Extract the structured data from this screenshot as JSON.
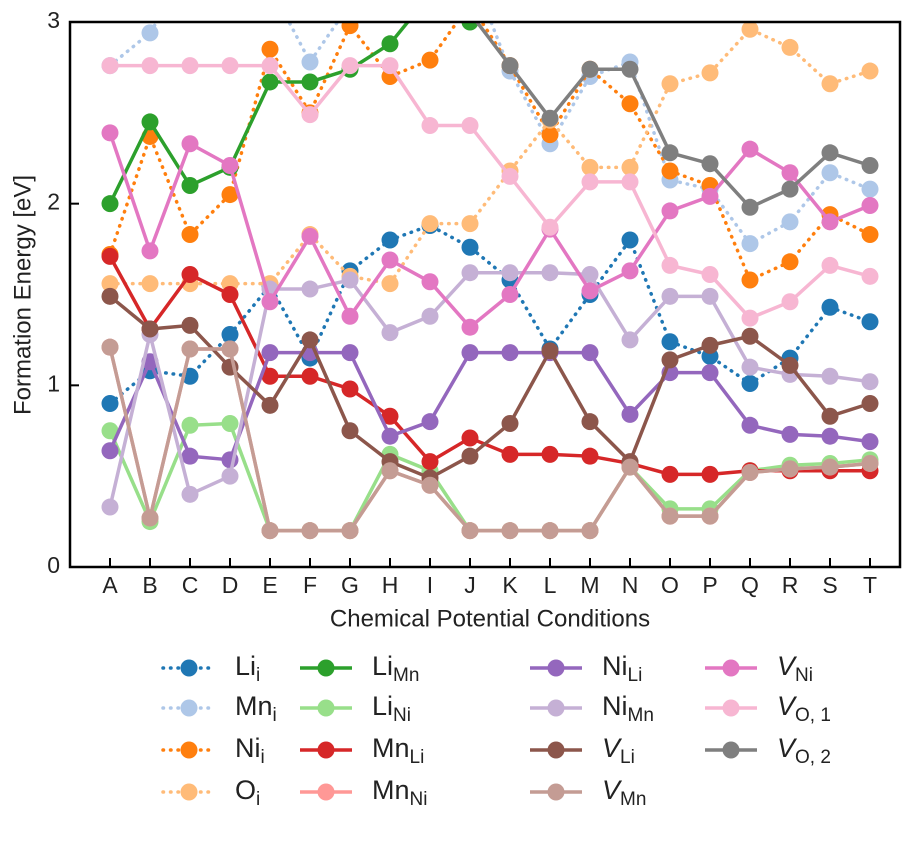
{
  "chart_data": {
    "type": "line",
    "x_label": "Chemical Potential Conditions",
    "y_label": "Formation Energy [eV]",
    "categories": [
      "A",
      "B",
      "C",
      "D",
      "E",
      "F",
      "G",
      "H",
      "I",
      "J",
      "K",
      "L",
      "M",
      "N",
      "O",
      "P",
      "Q",
      "R",
      "S",
      "T"
    ],
    "ylim": [
      0,
      3
    ],
    "yticks": [
      0,
      1,
      2,
      3
    ],
    "series": [
      {
        "name": "Li",
        "subscript": "i",
        "italic": false,
        "style": "dotted",
        "color": "#1f77b4",
        "values": [
          0.9,
          1.08,
          1.05,
          1.28,
          1.55,
          1.15,
          1.63,
          1.8,
          1.88,
          1.76,
          1.58,
          1.2,
          1.5,
          1.8,
          1.24,
          1.16,
          1.01,
          1.15,
          1.43,
          1.35
        ]
      },
      {
        "name": "Mn",
        "subscript": "i",
        "italic": false,
        "style": "dotted",
        "color": "#aec7e8",
        "values": [
          2.76,
          2.94,
          3.3,
          3.3,
          3.2,
          2.78,
          3.1,
          3.3,
          3.3,
          3.3,
          2.73,
          2.33,
          2.7,
          2.78,
          2.13,
          2.08,
          1.78,
          1.9,
          2.17,
          2.08
        ]
      },
      {
        "name": "Ni",
        "subscript": "i",
        "italic": false,
        "style": "dotted",
        "color": "#ff7f0e",
        "values": [
          1.72,
          2.37,
          1.83,
          2.05,
          2.85,
          2.5,
          2.98,
          2.7,
          2.79,
          3.1,
          2.76,
          2.38,
          2.74,
          2.55,
          2.18,
          2.1,
          1.58,
          1.68,
          1.94,
          1.83
        ]
      },
      {
        "name": "O",
        "subscript": "i",
        "italic": false,
        "style": "dotted",
        "color": "#ffbb78",
        "values": [
          1.56,
          1.56,
          1.56,
          1.56,
          1.56,
          1.83,
          1.6,
          1.56,
          1.89,
          1.89,
          2.18,
          2.46,
          2.2,
          2.2,
          2.66,
          2.72,
          2.96,
          2.86,
          2.66,
          2.73
        ]
      },
      {
        "name": "Li",
        "subscript": "Mn",
        "italic": false,
        "style": "solid",
        "color": "#2ca02c",
        "values": [
          2.0,
          2.45,
          2.1,
          2.2,
          2.67,
          2.67,
          2.74,
          2.88,
          3.15,
          3.0,
          3.3,
          3.3,
          3.3,
          3.3,
          3.3,
          3.3,
          3.3,
          3.3,
          3.3,
          3.3
        ]
      },
      {
        "name": "Li",
        "subscript": "Ni",
        "italic": false,
        "style": "solid",
        "color": "#98df8a",
        "values": [
          0.75,
          0.25,
          0.78,
          0.79,
          0.2,
          0.2,
          0.2,
          0.62,
          0.53,
          0.2,
          0.2,
          0.2,
          0.2,
          0.55,
          0.32,
          0.32,
          0.53,
          0.56,
          0.57,
          0.59
        ]
      },
      {
        "name": "Mn",
        "subscript": "Li",
        "italic": false,
        "style": "solid",
        "color": "#d62728",
        "values": [
          1.71,
          1.31,
          1.61,
          1.5,
          1.05,
          1.05,
          0.98,
          0.83,
          0.58,
          0.71,
          0.62,
          0.62,
          0.61,
          0.57,
          0.51,
          0.51,
          0.53,
          0.53,
          0.53,
          0.53
        ]
      },
      {
        "name": "Mn",
        "subscript": "Ni",
        "italic": false,
        "style": "solid",
        "color": "#ff9896",
        "values": [
          1.21,
          0.27,
          1.2,
          1.2,
          0.2,
          0.2,
          0.2,
          0.53,
          0.45,
          0.2,
          0.2,
          0.2,
          0.2,
          0.55,
          0.28,
          0.28,
          0.52,
          0.54,
          0.55,
          0.57
        ]
      },
      {
        "name": "Ni",
        "subscript": "Li",
        "italic": false,
        "style": "solid",
        "color": "#9467bd",
        "values": [
          0.64,
          1.13,
          0.61,
          0.59,
          1.18,
          1.18,
          1.18,
          0.72,
          0.8,
          1.18,
          1.18,
          1.18,
          1.18,
          0.84,
          1.07,
          1.07,
          0.78,
          0.73,
          0.72,
          0.69
        ]
      },
      {
        "name": "Ni",
        "subscript": "Mn",
        "italic": false,
        "style": "solid",
        "color": "#c5b0d5",
        "values": [
          0.33,
          1.28,
          0.4,
          0.5,
          1.53,
          1.53,
          1.58,
          1.29,
          1.38,
          1.62,
          1.62,
          1.62,
          1.61,
          1.25,
          1.49,
          1.49,
          1.1,
          1.06,
          1.05,
          1.02
        ]
      },
      {
        "name": "V",
        "subscript": "Li",
        "italic": true,
        "style": "solid",
        "color": "#8c564b",
        "values": [
          1.49,
          1.31,
          1.33,
          1.1,
          0.89,
          1.25,
          0.75,
          0.58,
          0.49,
          0.61,
          0.79,
          1.19,
          0.8,
          0.58,
          1.14,
          1.22,
          1.27,
          1.11,
          0.83,
          0.9
        ]
      },
      {
        "name": "V",
        "subscript": "Mn",
        "italic": true,
        "style": "solid",
        "color": "#c49c94",
        "values": [
          1.21,
          0.27,
          1.2,
          1.2,
          0.2,
          0.2,
          0.2,
          0.53,
          0.45,
          0.2,
          0.2,
          0.2,
          0.2,
          0.55,
          0.28,
          0.28,
          0.52,
          0.54,
          0.55,
          0.57
        ]
      },
      {
        "name": "V",
        "subscript": "Ni",
        "italic": true,
        "style": "solid",
        "color": "#e377c2",
        "values": [
          2.39,
          1.74,
          2.33,
          2.21,
          1.46,
          1.82,
          1.38,
          1.69,
          1.57,
          1.32,
          1.5,
          1.86,
          1.52,
          1.63,
          1.96,
          2.04,
          2.3,
          2.17,
          1.9,
          1.99
        ]
      },
      {
        "name": "V",
        "subscript": "O, 1",
        "italic": true,
        "style": "solid",
        "color": "#f7b6d2",
        "values": [
          2.76,
          2.76,
          2.76,
          2.76,
          2.76,
          2.49,
          2.76,
          2.76,
          2.43,
          2.43,
          2.15,
          1.87,
          2.12,
          2.12,
          1.66,
          1.61,
          1.37,
          1.46,
          1.66,
          1.6
        ]
      },
      {
        "name": "V",
        "subscript": "O, 2",
        "italic": true,
        "style": "solid",
        "color": "#7f7f7f",
        "values": [
          3.3,
          3.3,
          3.3,
          3.3,
          3.3,
          3.3,
          3.3,
          3.3,
          3.3,
          3.05,
          2.76,
          2.47,
          2.74,
          2.74,
          2.28,
          2.22,
          1.98,
          2.08,
          2.28,
          2.21
        ]
      }
    ]
  }
}
